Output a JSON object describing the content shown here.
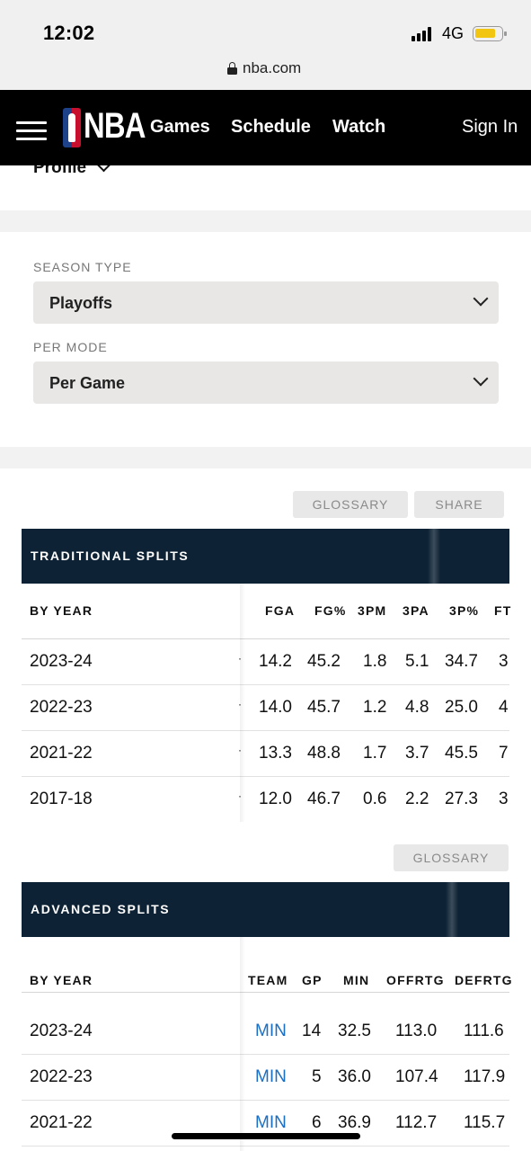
{
  "status_bar": {
    "time": "12:02",
    "network": "4G"
  },
  "browser": {
    "url": "nba.com"
  },
  "header": {
    "logo_text": "NBA",
    "nav": [
      "Games",
      "Schedule",
      "Watch"
    ],
    "sign_in": "Sign In"
  },
  "profile_menu": {
    "label": "Profile"
  },
  "filters": {
    "season_type": {
      "label": "SEASON TYPE",
      "value": "Playoffs"
    },
    "per_mode": {
      "label": "PER MODE",
      "value": "Per Game"
    }
  },
  "traditional": {
    "glossary": "GLOSSARY",
    "share": "SHARE",
    "title": "TRADITIONAL SPLITS",
    "columns": [
      "BY YEAR",
      "FGA",
      "FG%",
      "3PM",
      "3PA",
      "3P%",
      "FT"
    ],
    "rows": [
      {
        "year": "2023-24",
        "cut": "·",
        "fga": "14.2",
        "fgp": "45.2",
        "tpm": "1.8",
        "tpa": "5.1",
        "tpp": "34.7",
        "ft": "3"
      },
      {
        "year": "2022-23",
        "cut": "·",
        "fga": "14.0",
        "fgp": "45.7",
        "tpm": "1.2",
        "tpa": "4.8",
        "tpp": "25.0",
        "ft": "4"
      },
      {
        "year": "2021-22",
        "cut": "·",
        "fga": "13.3",
        "fgp": "48.8",
        "tpm": "1.7",
        "tpa": "3.7",
        "tpp": "45.5",
        "ft": "7"
      },
      {
        "year": "2017-18",
        "cut": "·",
        "fga": "12.0",
        "fgp": "46.7",
        "tpm": "0.6",
        "tpa": "2.2",
        "tpp": "27.3",
        "ft": "3"
      }
    ]
  },
  "advanced": {
    "glossary": "GLOSSARY",
    "title": "ADVANCED SPLITS",
    "columns": [
      "BY YEAR",
      "TEAM",
      "GP",
      "MIN",
      "OFFRTG",
      "DEFRTG"
    ],
    "rows": [
      {
        "year": "2023-24",
        "team": "MIN",
        "gp": "14",
        "min": "32.5",
        "offrtg": "113.0",
        "defrtg": "111.6"
      },
      {
        "year": "2022-23",
        "team": "MIN",
        "gp": "5",
        "min": "36.0",
        "offrtg": "107.4",
        "defrtg": "117.9"
      },
      {
        "year": "2021-22",
        "team": "MIN",
        "gp": "6",
        "min": "36.9",
        "offrtg": "112.7",
        "defrtg": "115.7"
      }
    ]
  },
  "colors": {
    "header_bg": "#000000",
    "section_bar": "#0d2235",
    "link": "#1a6fc4",
    "battery": "#f2c511"
  }
}
